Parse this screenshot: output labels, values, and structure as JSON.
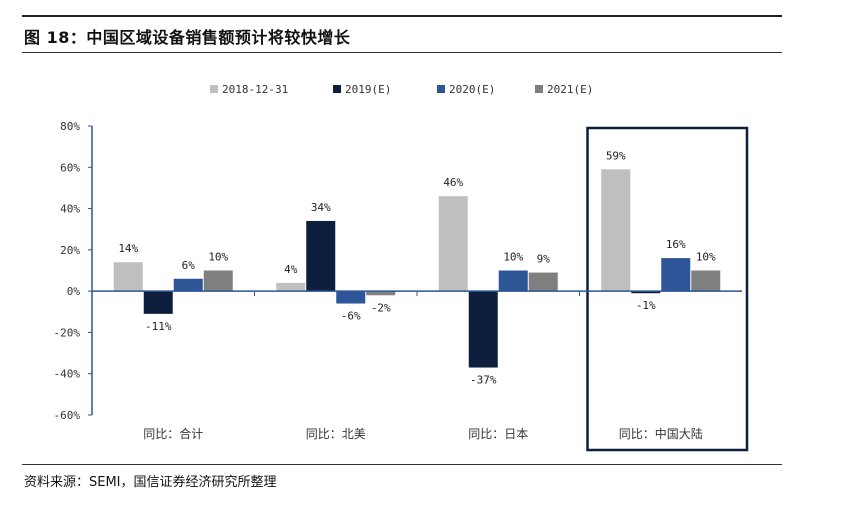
{
  "title": "图 18：中国区域设备销售额预计将较快增长",
  "source": "资料来源：SEMI，国信证券经济研究所整理",
  "chart_data": {
    "type": "bar",
    "categories": [
      "同比：合计",
      "同比：北美",
      "同比：日本",
      "同比：中国大陆"
    ],
    "series": [
      {
        "name": "2018-12-31",
        "color": "#bfbfbf",
        "values": [
          14,
          4,
          46,
          59
        ]
      },
      {
        "name": "2019(E)",
        "color": "#0d1f3c",
        "values": [
          -11,
          34,
          -37,
          -1
        ]
      },
      {
        "name": "2020(E)",
        "color": "#2e5597",
        "values": [
          6,
          -6,
          10,
          16
        ]
      },
      {
        "name": "2021(E)",
        "color": "#7f7f7f",
        "values": [
          10,
          -2,
          9,
          10
        ]
      }
    ],
    "ylim": [
      -60,
      80
    ],
    "yticks": [
      -60,
      -40,
      -20,
      0,
      20,
      40,
      60,
      80
    ],
    "value_suffix": "%",
    "legend_position": "top",
    "highlight_category": "同比：中国大陆",
    "highlight_color": "#0d1f3c",
    "grid": false
  }
}
